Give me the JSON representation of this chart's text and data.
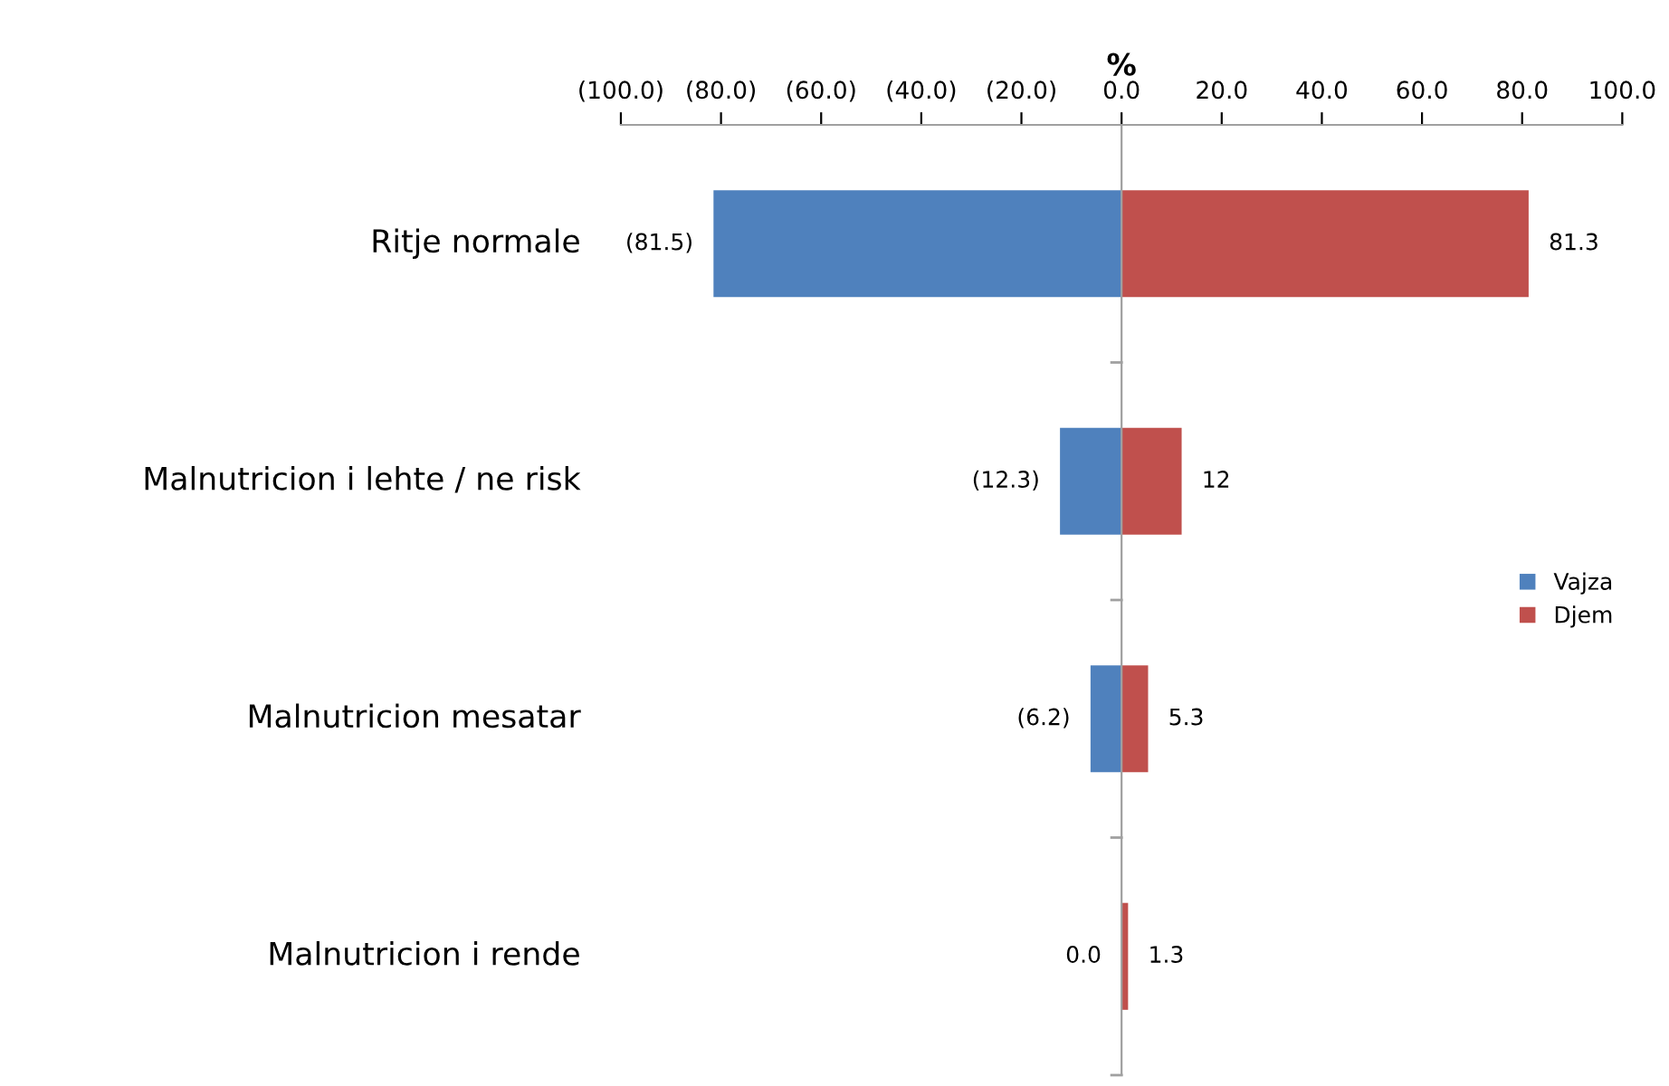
{
  "chart_data": {
    "type": "bar",
    "orientation": "horizontal",
    "stacked": true,
    "xlabel": "%",
    "categories": [
      "Ritje normale",
      "Malnutricion i lehte / ne risk",
      "Malnutricion mesatar",
      "Malnutricion i rende"
    ],
    "series": [
      {
        "name": "Vajza",
        "color": "#4f81bd",
        "values": [
          -81.5,
          -12.3,
          -6.2,
          0
        ],
        "value_labels": [
          "(81.5)",
          "(12.3)",
          "(6.2)",
          "0.0"
        ]
      },
      {
        "name": "Djem",
        "color": "#c0504d",
        "values": [
          81.3,
          12,
          5.3,
          1.3
        ],
        "value_labels": [
          "81.3",
          "12",
          "5.3",
          "1.3"
        ]
      }
    ],
    "xlim": [
      -100,
      100
    ],
    "xticks": [
      {
        "value": -100,
        "label": "(100.0)"
      },
      {
        "value": -80,
        "label": "(80.0)"
      },
      {
        "value": -60,
        "label": "(60.0)"
      },
      {
        "value": -40,
        "label": "(40.0)"
      },
      {
        "value": -20,
        "label": "(20.0)"
      },
      {
        "value": 0,
        "label": "0.0"
      },
      {
        "value": 20,
        "label": "20.0"
      },
      {
        "value": 40,
        "label": "40.0"
      },
      {
        "value": 60,
        "label": "60.0"
      },
      {
        "value": 80,
        "label": "80.0"
      },
      {
        "value": 100,
        "label": "100.0"
      }
    ],
    "legend": "right"
  }
}
